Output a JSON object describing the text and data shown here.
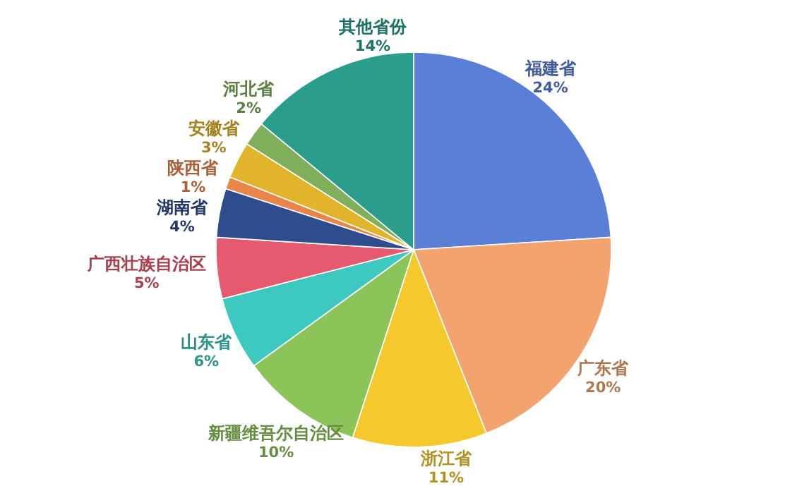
{
  "chart_data": {
    "type": "pie",
    "categories": [
      "福建省",
      "广东省",
      "浙江省",
      "新疆维吾尔自治区",
      "山东省",
      "广西壮族自治区",
      "湖南省",
      "陕西省",
      "安徽省",
      "河北省",
      "其他省份"
    ],
    "values": [
      24,
      20,
      11,
      10,
      6,
      5,
      4,
      1,
      3,
      2,
      14
    ],
    "value_labels": [
      "24%",
      "20%",
      "11%",
      "10%",
      "6%",
      "5%",
      "4%",
      "1%",
      "3%",
      "2%",
      "14%"
    ],
    "colors": [
      "#5a7fd6",
      "#f2a36e",
      "#f5c92c",
      "#8cc45a",
      "#3ec9c0",
      "#e65a70",
      "#2f4d8c",
      "#e8864a",
      "#e2b42a",
      "#7faf5a",
      "#2a9d8c"
    ]
  }
}
